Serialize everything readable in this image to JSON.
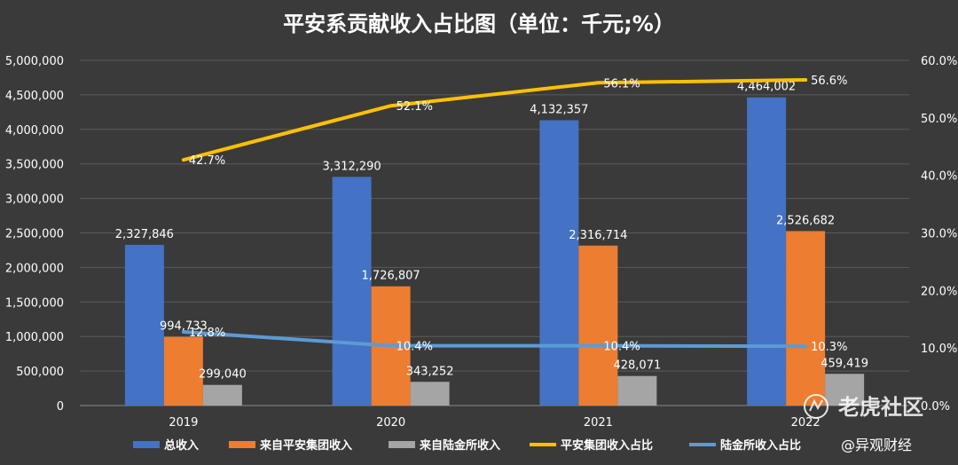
{
  "chart_data": {
    "type": "bar",
    "title": "平安系贡献收入占比图（单位：千元;%）",
    "categories": [
      "2019",
      "2020",
      "2021",
      "2022"
    ],
    "ylim": [
      0,
      5000000
    ],
    "y2lim": [
      0,
      60
    ],
    "yticks": [
      "0",
      "500,000",
      "1,000,000",
      "1,500,000",
      "2,000,000",
      "2,500,000",
      "3,000,000",
      "3,500,000",
      "4,000,000",
      "4,500,000",
      "5,000,000"
    ],
    "y2ticks": [
      "0.0%",
      "10.0%",
      "20.0%",
      "30.0%",
      "40.0%",
      "50.0%",
      "60.0%"
    ],
    "grid": true,
    "legend_position": "bottom",
    "bar_series": [
      {
        "name": "总收入",
        "color": "#4472c4",
        "values": [
          2327846,
          3312290,
          4132357,
          4464002
        ],
        "labels": [
          "2,327,846",
          "3,312,290",
          "4,132,357",
          "4,464,002"
        ]
      },
      {
        "name": "来自平安集团收入",
        "color": "#ed7d31",
        "values": [
          994733,
          1726807,
          2316714,
          2526682
        ],
        "labels": [
          "994,733",
          "1,726,807",
          "2,316,714",
          "2,526,682"
        ]
      },
      {
        "name": "来自陆金所收入",
        "color": "#a5a5a5",
        "values": [
          299040,
          343252,
          428071,
          459419
        ],
        "labels": [
          "299,040",
          "343,252",
          "428,071",
          "459,419"
        ]
      }
    ],
    "line_series": [
      {
        "name": "平安集团收入占比",
        "color": "#ffc000",
        "values": [
          42.7,
          52.1,
          56.1,
          56.6
        ],
        "labels": [
          "42.7%",
          "52.1%",
          "56.1%",
          "56.6%"
        ]
      },
      {
        "name": "陆金所收入占比",
        "color": "#5b9bd5",
        "values": [
          12.8,
          10.4,
          10.4,
          10.3
        ],
        "labels": [
          "12.8%",
          "10.4%",
          "10.4%",
          "10.3%"
        ]
      }
    ]
  },
  "watermarks": {
    "main": "老虎社区",
    "secondary": "@异观财经"
  }
}
